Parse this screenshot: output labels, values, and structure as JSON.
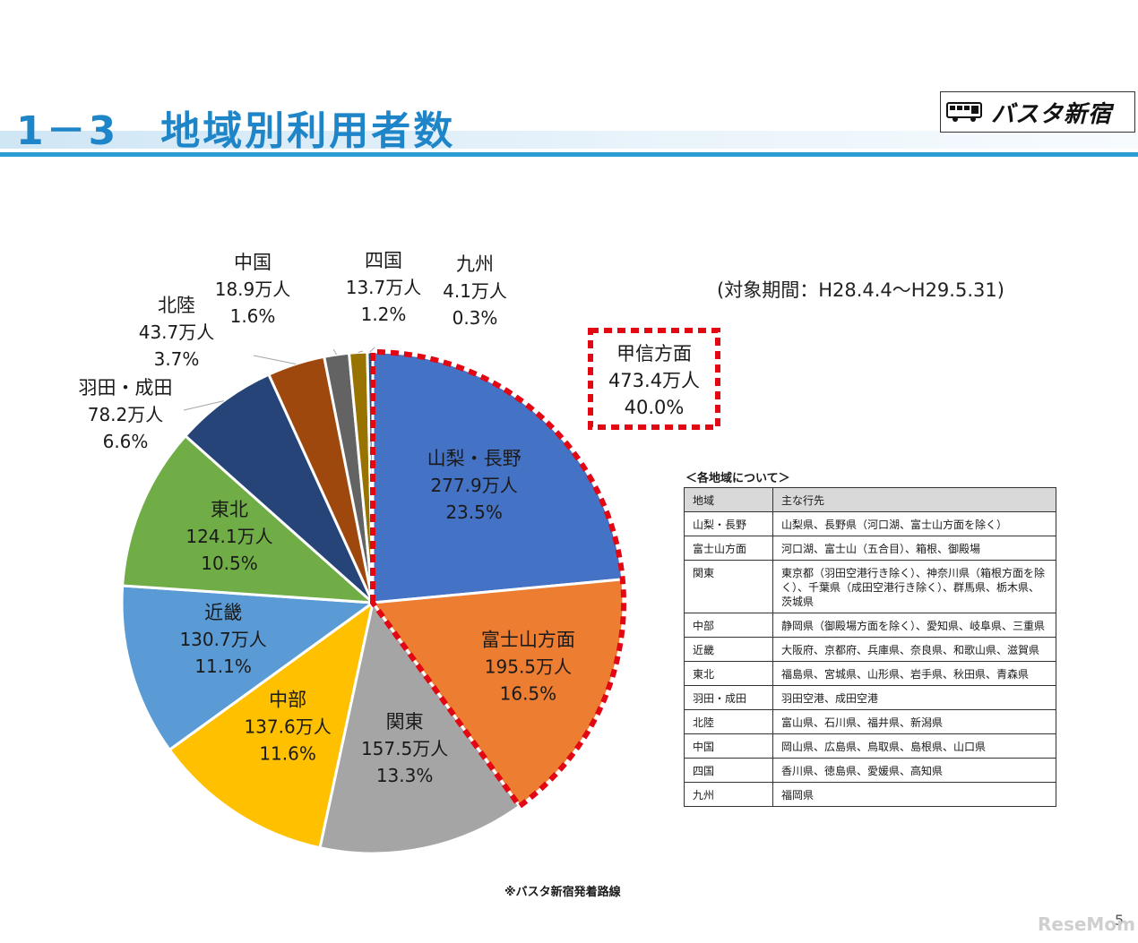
{
  "header": {
    "title": "1－3　地域別利用者数",
    "logo_text": "バスタ新宿"
  },
  "period": "(対象期間：H28.4.4～H29.5.31)",
  "highlight": {
    "name": "甲信方面",
    "value": "473.4万人",
    "percent": "40.0%",
    "border_color": "#e30613"
  },
  "chart_data": {
    "type": "pie",
    "unit": "万人",
    "start_angle_deg": 0,
    "direction": "clockwise",
    "slices": [
      {
        "name": "山梨・長野",
        "value": 277.9,
        "percent": "23.5%",
        "value_label": "277.9万人",
        "color": "#4472c4",
        "label_inside": true
      },
      {
        "name": "富士山方面",
        "value": 195.5,
        "percent": "16.5%",
        "value_label": "195.5万人",
        "color": "#ed7d31",
        "label_inside": true
      },
      {
        "name": "関東",
        "value": 157.5,
        "percent": "13.3%",
        "value_label": "157.5万人",
        "color": "#a5a5a5",
        "label_inside": true
      },
      {
        "name": "中部",
        "value": 137.6,
        "percent": "11.6%",
        "value_label": "137.6万人",
        "color": "#ffc000",
        "label_inside": true
      },
      {
        "name": "近畿",
        "value": 130.7,
        "percent": "11.1%",
        "value_label": "130.7万人",
        "color": "#5b9bd5",
        "label_inside": true
      },
      {
        "name": "東北",
        "value": 124.1,
        "percent": "10.5%",
        "value_label": "124.1万人",
        "color": "#70ad47",
        "label_inside": true
      },
      {
        "name": "羽田・成田",
        "value": 78.2,
        "percent": "6.6%",
        "value_label": "78.2万人",
        "color": "#264478",
        "label_inside": false
      },
      {
        "name": "北陸",
        "value": 43.7,
        "percent": "3.7%",
        "value_label": "43.7万人",
        "color": "#9e480e",
        "label_inside": false
      },
      {
        "name": "中国",
        "value": 18.9,
        "percent": "1.6%",
        "value_label": "18.9万人",
        "color": "#636363",
        "label_inside": false
      },
      {
        "name": "四国",
        "value": 13.7,
        "percent": "1.2%",
        "value_label": "13.7万人",
        "color": "#997300",
        "label_inside": false
      },
      {
        "name": "九州",
        "value": 4.1,
        "percent": "0.3%",
        "value_label": "4.1万人",
        "color": "#1f4e79",
        "label_inside": false
      }
    ]
  },
  "regions_table": {
    "caption": "＜各地域について＞",
    "headers": [
      "地域",
      "主な行先"
    ],
    "rows": [
      [
        "山梨・長野",
        "山梨県、長野県（河口湖、富士山方面を除く）"
      ],
      [
        "富士山方面",
        "河口湖、富士山（五合目）、箱根、御殿場"
      ],
      [
        "関東",
        "東京都（羽田空港行き除く）、神奈川県（箱根方面を除く）、千葉県（成田空港行き除く）、群馬県、栃木県、茨城県"
      ],
      [
        "中部",
        "静岡県（御殿場方面を除く）、愛知県、岐阜県、三重県"
      ],
      [
        "近畿",
        "大阪府、京都府、兵庫県、奈良県、和歌山県、滋賀県"
      ],
      [
        "東北",
        "福島県、宮城県、山形県、岩手県、秋田県、青森県"
      ],
      [
        "羽田・成田",
        "羽田空港、成田空港"
      ],
      [
        "北陸",
        "富山県、石川県、福井県、新潟県"
      ],
      [
        "中国",
        "岡山県、広島県、鳥取県、島根県、山口県"
      ],
      [
        "四国",
        "香川県、徳島県、愛媛県、高知県"
      ],
      [
        "九州",
        "福岡県"
      ]
    ]
  },
  "footnote": "※バスタ新宿発着路線",
  "page_number": "5",
  "watermark": "ReseMom"
}
